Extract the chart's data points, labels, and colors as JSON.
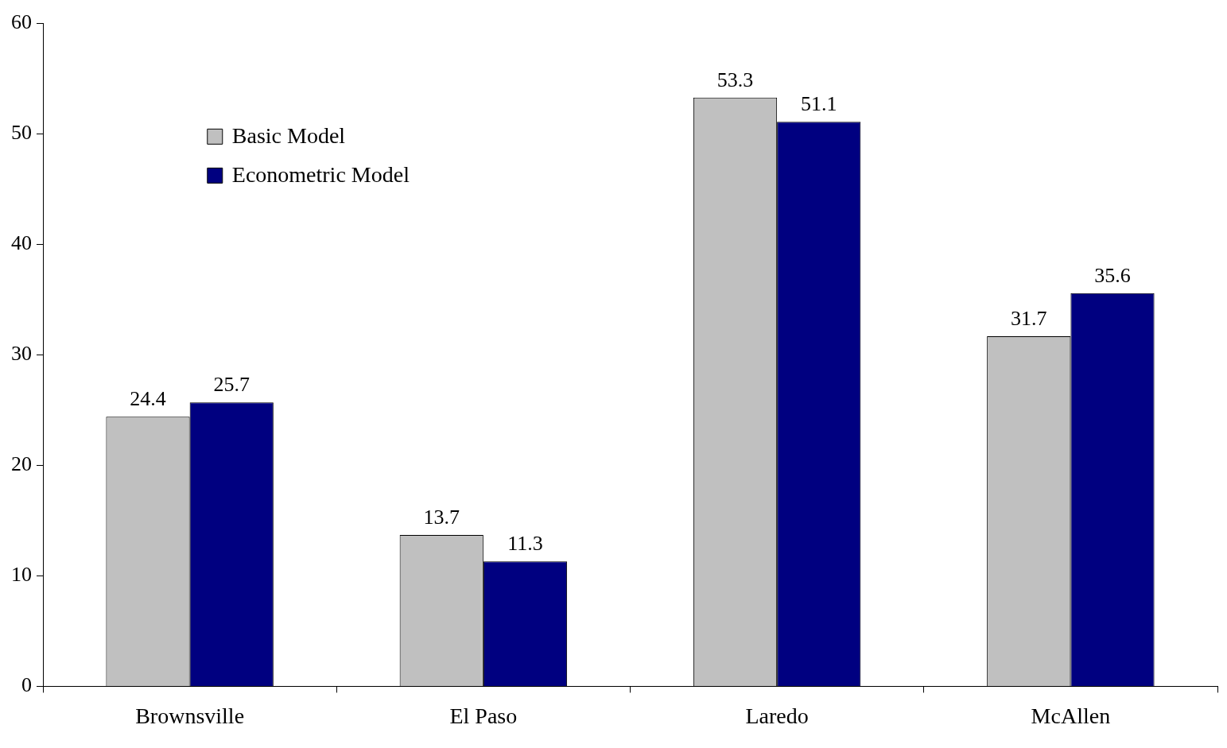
{
  "chart_data": {
    "type": "bar",
    "categories": [
      "Brownsville",
      "El Paso",
      "Laredo",
      "McAllen"
    ],
    "series": [
      {
        "name": "Basic Model",
        "color": "#c0c0c0",
        "values": [
          24.4,
          13.7,
          53.3,
          31.7
        ]
      },
      {
        "name": "Econometric Model",
        "color": "#000080",
        "values": [
          25.7,
          11.3,
          51.1,
          35.6
        ]
      }
    ],
    "ylim": [
      0,
      60
    ],
    "yticks": [
      0,
      10,
      20,
      30,
      40,
      50,
      60
    ],
    "grid": false,
    "legend": "top left",
    "data_labels": true
  }
}
